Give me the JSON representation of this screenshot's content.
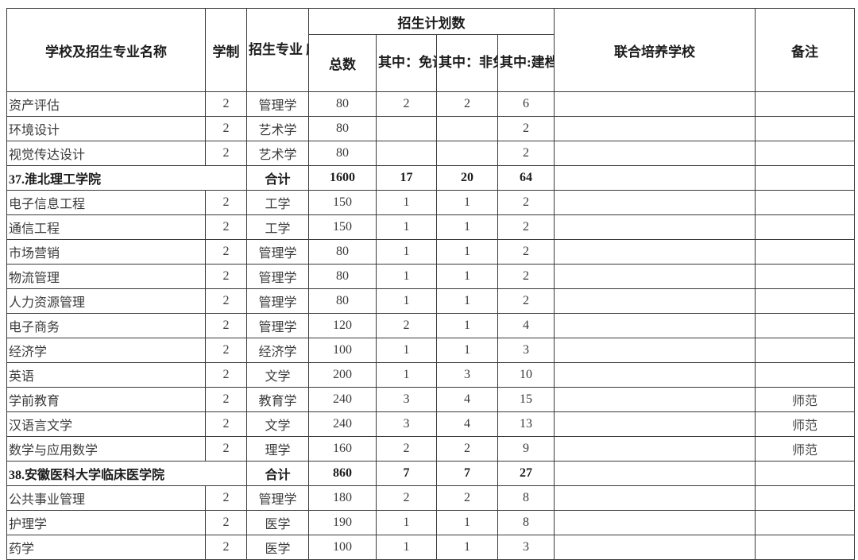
{
  "colors": {
    "background": "#ffffff",
    "border": "#3a3a3a",
    "text": "#303030",
    "bold_text": "#1c1c1c"
  },
  "table": {
    "header": {
      "col_school": "学校及招生专业名称",
      "col_duration": "学制",
      "col_discipline": "招生专业\n所属学科\n门类",
      "col_plan_group": "招生计划数",
      "col_total": "总数",
      "col_exempt": "其中：免试\n退役士兵专\n项计划",
      "col_non_exempt": "其中：非免\n试退役士兵\n专项计划",
      "col_poverty": "其中:建档\n立卡考生\n专项计划",
      "col_joint": "联合培养学校",
      "col_remark": "备注"
    },
    "rows": [
      {
        "is_summary": false,
        "name": "资产评估",
        "duration": "2",
        "discipline": "管理学",
        "total": "80",
        "exempt": "2",
        "non_exempt": "2",
        "poverty": "6",
        "joint": "",
        "remark": ""
      },
      {
        "is_summary": false,
        "name": "环境设计",
        "duration": "2",
        "discipline": "艺术学",
        "total": "80",
        "exempt": "",
        "non_exempt": "",
        "poverty": "2",
        "joint": "",
        "remark": ""
      },
      {
        "is_summary": false,
        "name": "视觉传达设计",
        "duration": "2",
        "discipline": "艺术学",
        "total": "80",
        "exempt": "",
        "non_exempt": "",
        "poverty": "2",
        "joint": "",
        "remark": ""
      },
      {
        "is_summary": true,
        "name": "37.淮北理工学院",
        "duration": "",
        "discipline": "合计",
        "total": "1600",
        "exempt": "17",
        "non_exempt": "20",
        "poverty": "64",
        "joint": "",
        "remark": ""
      },
      {
        "is_summary": false,
        "name": "电子信息工程",
        "duration": "2",
        "discipline": "工学",
        "total": "150",
        "exempt": "1",
        "non_exempt": "1",
        "poverty": "2",
        "joint": "",
        "remark": ""
      },
      {
        "is_summary": false,
        "name": "通信工程",
        "duration": "2",
        "discipline": "工学",
        "total": "150",
        "exempt": "1",
        "non_exempt": "1",
        "poverty": "2",
        "joint": "",
        "remark": ""
      },
      {
        "is_summary": false,
        "name": "市场营销",
        "duration": "2",
        "discipline": "管理学",
        "total": "80",
        "exempt": "1",
        "non_exempt": "1",
        "poverty": "2",
        "joint": "",
        "remark": ""
      },
      {
        "is_summary": false,
        "name": "物流管理",
        "duration": "2",
        "discipline": "管理学",
        "total": "80",
        "exempt": "1",
        "non_exempt": "1",
        "poverty": "2",
        "joint": "",
        "remark": ""
      },
      {
        "is_summary": false,
        "name": "人力资源管理",
        "duration": "2",
        "discipline": "管理学",
        "total": "80",
        "exempt": "1",
        "non_exempt": "1",
        "poverty": "2",
        "joint": "",
        "remark": ""
      },
      {
        "is_summary": false,
        "name": "电子商务",
        "duration": "2",
        "discipline": "管理学",
        "total": "120",
        "exempt": "2",
        "non_exempt": "1",
        "poverty": "4",
        "joint": "",
        "remark": ""
      },
      {
        "is_summary": false,
        "name": "经济学",
        "duration": "2",
        "discipline": "经济学",
        "total": "100",
        "exempt": "1",
        "non_exempt": "1",
        "poverty": "3",
        "joint": "",
        "remark": ""
      },
      {
        "is_summary": false,
        "name": "英语",
        "duration": "2",
        "discipline": "文学",
        "total": "200",
        "exempt": "1",
        "non_exempt": "3",
        "poverty": "10",
        "joint": "",
        "remark": ""
      },
      {
        "is_summary": false,
        "name": "学前教育",
        "duration": "2",
        "discipline": "教育学",
        "total": "240",
        "exempt": "3",
        "non_exempt": "4",
        "poverty": "15",
        "joint": "",
        "remark": "师范"
      },
      {
        "is_summary": false,
        "name": "汉语言文学",
        "duration": "2",
        "discipline": "文学",
        "total": "240",
        "exempt": "3",
        "non_exempt": "4",
        "poverty": "13",
        "joint": "",
        "remark": "师范"
      },
      {
        "is_summary": false,
        "name": "数学与应用数学",
        "duration": "2",
        "discipline": "理学",
        "total": "160",
        "exempt": "2",
        "non_exempt": "2",
        "poverty": "9",
        "joint": "",
        "remark": "师范"
      },
      {
        "is_summary": true,
        "name": "38.安徽医科大学临床医学院",
        "duration": "",
        "discipline": "合计",
        "total": "860",
        "exempt": "7",
        "non_exempt": "7",
        "poverty": "27",
        "joint": "",
        "remark": ""
      },
      {
        "is_summary": false,
        "name": "公共事业管理",
        "duration": "2",
        "discipline": "管理学",
        "total": "180",
        "exempt": "2",
        "non_exempt": "2",
        "poverty": "8",
        "joint": "",
        "remark": ""
      },
      {
        "is_summary": false,
        "name": "护理学",
        "duration": "2",
        "discipline": "医学",
        "total": "190",
        "exempt": "1",
        "non_exempt": "1",
        "poverty": "8",
        "joint": "",
        "remark": ""
      },
      {
        "is_summary": false,
        "name": "药学",
        "duration": "2",
        "discipline": "医学",
        "total": "100",
        "exempt": "1",
        "non_exempt": "1",
        "poverty": "3",
        "joint": "",
        "remark": ""
      }
    ]
  }
}
